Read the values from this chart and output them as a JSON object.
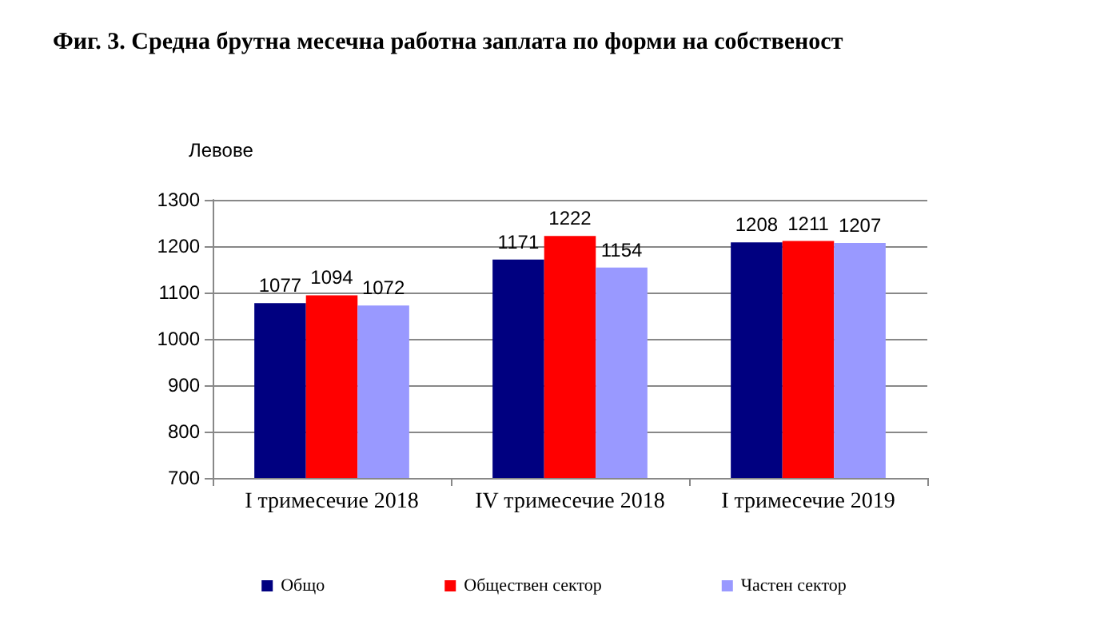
{
  "chart_data": {
    "type": "bar",
    "title": "Фиг. 3. Средна брутна месечна работна заплата по форми на собственост",
    "ylabel": "Левове",
    "categories": [
      "I тримесечие 2018",
      "IV тримесечие 2018",
      "I тримесечие 2019"
    ],
    "series": [
      {
        "name": "Общо",
        "color": "#000080",
        "values": [
          1077,
          1171,
          1208
        ]
      },
      {
        "name": "Обществен сектор",
        "color": "#ff0000",
        "values": [
          1094,
          1222,
          1211
        ]
      },
      {
        "name": "Частен сектор",
        "color": "#9999ff",
        "values": [
          1072,
          1154,
          1207
        ]
      }
    ],
    "ylim": [
      700,
      1300
    ],
    "yticks": [
      700,
      800,
      900,
      1000,
      1100,
      1200,
      1300
    ],
    "grid": "y",
    "legend": "bottom",
    "data_labels": true
  }
}
